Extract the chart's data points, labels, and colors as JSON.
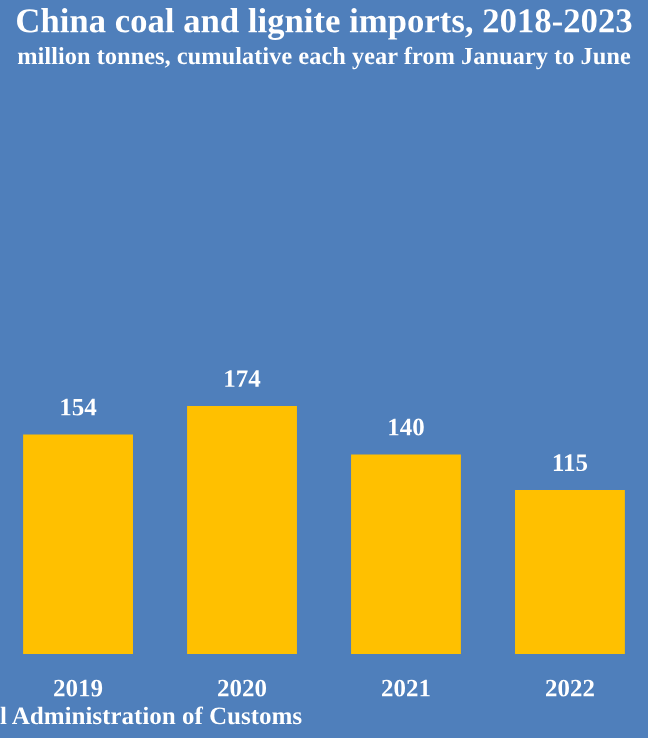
{
  "chart_data": {
    "type": "bar",
    "title": "China coal and lignite imports, 2018-2023",
    "subtitle": "million tonnes, cumulative each year from January to June",
    "categories": [
      "2019",
      "2020",
      "2021",
      "2022"
    ],
    "values": [
      154,
      174,
      140,
      115
    ],
    "color": "#ffc000",
    "data_labels": true,
    "grid": false,
    "legend": false,
    "annotations": [
      "l Administration of Customs"
    ]
  }
}
